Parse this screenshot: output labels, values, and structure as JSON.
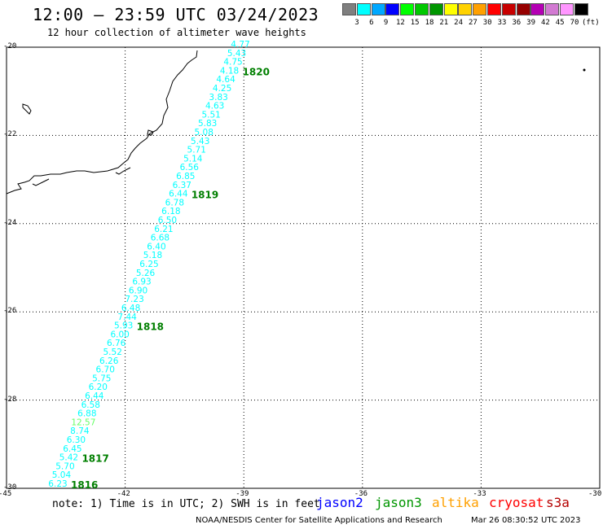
{
  "header": {
    "title": "12:00 – 23:59 UTC 03/24/2023",
    "subtitle": "12 hour collection of altimeter wave heights"
  },
  "legend": {
    "colors": [
      "#7f7f7f",
      "#00ffff",
      "#00a8ff",
      "#0000ff",
      "#00ff00",
      "#00c800",
      "#009600",
      "#ffff00",
      "#ffd200",
      "#ffa000",
      "#ff0000",
      "#c80000",
      "#960000",
      "#b400b4",
      "#d27ad2",
      "#ff96ff",
      "#000000"
    ],
    "labels": [
      "3",
      "6",
      "9",
      "12",
      "15",
      "18",
      "21",
      "24",
      "27",
      "30",
      "33",
      "36",
      "39",
      "42",
      "45",
      "70"
    ],
    "unit": "(ft)"
  },
  "axes": {
    "lat_ticks": [
      "-20",
      "-22",
      "-24",
      "-26",
      "-28",
      "-30"
    ],
    "lon_ticks": [
      "-45",
      "-42",
      "-39",
      "-36",
      "-33",
      "-30"
    ]
  },
  "track": {
    "values": [
      "4.77",
      "5.43",
      "4.75",
      "4.18",
      "4.64",
      "4.25",
      "3.83",
      "4.63",
      "5.51",
      "5.83",
      "5.08",
      "5.43",
      "5.71",
      "5.14",
      "6.56",
      "6.85",
      "6.37",
      "6.44",
      "6.78",
      "6.18",
      "6.50",
      "6.21",
      "6.68",
      "6.40",
      "5.18",
      "6.25",
      "5.26",
      "6.93",
      "6.90",
      "7.23",
      "6.48",
      "7.44",
      "5.93",
      "6.00",
      "6.76",
      "5.52",
      "6.26",
      "6.70",
      "5.75",
      "6.20",
      "6.44",
      "6.58",
      "6.88",
      "12.57",
      "8.74",
      "6.30",
      "6.45",
      "5.42",
      "5.70",
      "5.04",
      "6.23"
    ],
    "highlight_value": "12.57",
    "point_color": "#00ffff",
    "highlight_color": "#66ff66",
    "time_labels": [
      "1820",
      "1819",
      "1818",
      "1817",
      "1816"
    ],
    "time_color": "#007f00"
  },
  "footer": {
    "note": "note: 1) Time is in UTC; 2) SWH is in feet",
    "satellites": [
      {
        "name": "jason2",
        "color": "#0000ff"
      },
      {
        "name": "jason3",
        "color": "#009600"
      },
      {
        "name": "altika",
        "color": "#ffa000"
      },
      {
        "name": "cryosat",
        "color": "#ff0000"
      },
      {
        "name": "s3a",
        "color": "#b40000"
      }
    ],
    "credit": "NOAA/NESDIS Center for Satellite Applications and Research",
    "timestamp": "Mar 26 08:30:52 UTC 2023"
  }
}
